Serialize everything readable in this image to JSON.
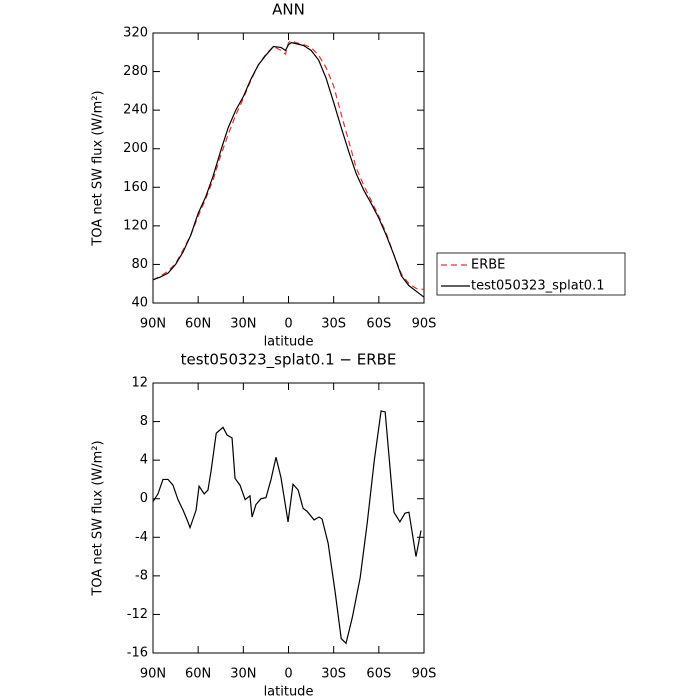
{
  "chart_data": [
    {
      "type": "line",
      "title": "ANN",
      "xlabel": "latitude",
      "ylabel": "TOA net SW flux (W/m²)",
      "x": [
        90,
        85,
        80,
        75,
        70,
        65,
        60,
        55,
        50,
        45,
        40,
        35,
        30,
        25,
        20,
        15,
        10,
        5,
        2,
        0,
        -2,
        -5,
        -10,
        -15,
        -20,
        -25,
        -30,
        -35,
        -40,
        -45,
        -50,
        -55,
        -60,
        -65,
        -70,
        -75,
        -80,
        -85,
        -90
      ],
      "series": [
        {
          "name": "ERBE",
          "color": "#e8302a",
          "linestyle": "dashed",
          "values": [
            64,
            68,
            73,
            81,
            95,
            110,
            130,
            148,
            168,
            193,
            215,
            235,
            252,
            271,
            287,
            298,
            306,
            302,
            298,
            310,
            312,
            310,
            308,
            305,
            297,
            284,
            265,
            236,
            208,
            180,
            162,
            146,
            130,
            112,
            90,
            70,
            60,
            55,
            54
          ]
        },
        {
          "name": "test050323_splat0.1",
          "color": "#000000",
          "linestyle": "solid",
          "values": [
            64,
            67,
            71,
            80,
            93,
            110,
            133,
            150,
            172,
            198,
            222,
            240,
            254,
            272,
            287,
            297,
            306,
            305,
            302,
            308,
            310,
            309,
            307,
            302,
            292,
            273,
            248,
            222,
            197,
            174,
            157,
            143,
            128,
            110,
            90,
            68,
            58,
            52,
            46
          ]
        }
      ],
      "xlim": [
        90,
        -90
      ],
      "xticks": [
        {
          "value": 90,
          "label": "90N"
        },
        {
          "value": 60,
          "label": "60N"
        },
        {
          "value": 30,
          "label": "30N"
        },
        0,
        {
          "value": -30,
          "label": "30S"
        },
        {
          "value": -60,
          "label": "60S"
        },
        {
          "value": -90,
          "label": "90S"
        }
      ],
      "ylim": [
        40,
        320
      ],
      "yticks": [
        40,
        80,
        120,
        160,
        200,
        240,
        280,
        320
      ],
      "legend": "right"
    },
    {
      "type": "line",
      "title": "test050323_splat0.1 − ERBE",
      "xlabel": "latitude",
      "ylabel": "TOA net SW flux (W/m²)",
      "color": "#000000",
      "x": [
        90,
        86.7,
        83.4,
        80,
        76.7,
        73.4,
        70,
        66.8,
        65.4,
        61.4,
        59.4,
        56,
        53.5,
        51.5,
        48,
        43.5,
        40.8,
        37.5,
        35.5,
        32.2,
        28.8,
        25.6,
        24.2,
        21.6,
        18.3,
        15,
        11.6,
        8.3,
        5,
        0.3,
        -3,
        -6.4,
        -9.7,
        -12.3,
        -17,
        -20.3,
        -22.3,
        -26.3,
        -31,
        -35,
        -38.2,
        -42.4,
        -47.6,
        -52.3,
        -57,
        -61.5,
        -64.2,
        -70,
        -74,
        -77.4,
        -80,
        -84.7,
        -88
      ],
      "values": [
        -0.3,
        0.5,
        2,
        2,
        1.4,
        -0.1,
        -1.2,
        -2.4,
        -3,
        -1.2,
        1.3,
        0.5,
        0.9,
        2.8,
        6.8,
        7.4,
        6.6,
        6.3,
        2.1,
        1.4,
        -0.1,
        0.3,
        -1.9,
        -0.6,
        0,
        0.1,
        2,
        4.3,
        2.2,
        -2.4,
        1.5,
        0.9,
        -1,
        -1.3,
        -2.2,
        -1.9,
        -2.1,
        -4.6,
        -9.7,
        -14.5,
        -15,
        -12.3,
        -8.2,
        -2.5,
        4,
        9.1,
        9,
        -1.4,
        -2.4,
        -1.5,
        -1.4,
        -6,
        -3.3
      ],
      "xlim": [
        90,
        -90
      ],
      "xticks": [
        {
          "value": 90,
          "label": "90N"
        },
        {
          "value": 60,
          "label": "60N"
        },
        {
          "value": 30,
          "label": "30N"
        },
        0,
        {
          "value": -30,
          "label": "30S"
        },
        {
          "value": -60,
          "label": "60S"
        },
        {
          "value": -90,
          "label": "90S"
        }
      ],
      "ylim": [
        -16,
        12
      ],
      "yticks": [
        -16,
        -12,
        -8,
        -4,
        0,
        4,
        8,
        12
      ]
    }
  ]
}
